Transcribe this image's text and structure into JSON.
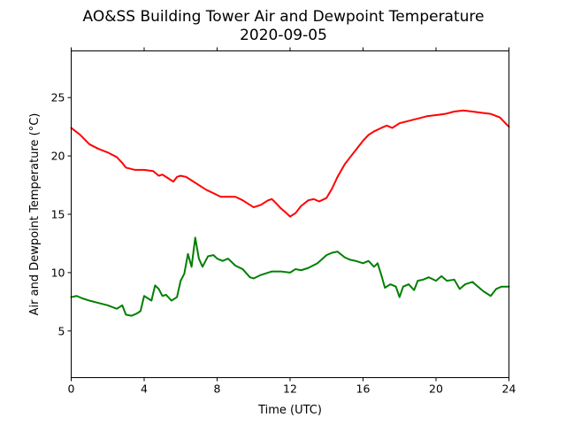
{
  "chart_data": {
    "type": "line",
    "title": "AO&SS Building Tower Air and Dewpoint Temperature",
    "subtitle": "2020-09-05",
    "xlabel": "Time (UTC)",
    "ylabel": "Air and Dewpoint Temperature (°C)",
    "xlim": [
      0,
      24
    ],
    "ylim": [
      1,
      29
    ],
    "x_ticks": [
      0,
      4,
      8,
      12,
      16,
      20,
      24
    ],
    "y_ticks": [
      5,
      10,
      15,
      20,
      25
    ],
    "grid": false,
    "series": [
      {
        "color": "#ff0000",
        "x": [
          0,
          0.5,
          1,
          1.5,
          2,
          2.5,
          2.8,
          3,
          3.5,
          4,
          4.5,
          4.8,
          5,
          5.3,
          5.6,
          5.8,
          6,
          6.3,
          6.6,
          7,
          7.4,
          7.8,
          8.2,
          8.6,
          9,
          9.4,
          9.8,
          10,
          10.4,
          10.8,
          11,
          11.2,
          11.5,
          11.8,
          12,
          12.3,
          12.6,
          13,
          13.3,
          13.6,
          14,
          14.3,
          14.6,
          15,
          15.3,
          15.6,
          16,
          16.3,
          16.6,
          17,
          17.3,
          17.6,
          18,
          18.5,
          19,
          19.5,
          20,
          20.5,
          21,
          21.5,
          22,
          22.5,
          23,
          23.5,
          24
        ],
        "values": [
          22.4,
          21.8,
          21.0,
          20.6,
          20.3,
          19.9,
          19.4,
          19.0,
          18.8,
          18.8,
          18.7,
          18.3,
          18.4,
          18.1,
          17.8,
          18.2,
          18.3,
          18.2,
          17.9,
          17.5,
          17.1,
          16.8,
          16.5,
          16.5,
          16.5,
          16.2,
          15.8,
          15.6,
          15.8,
          16.2,
          16.3,
          16.0,
          15.5,
          15.1,
          14.8,
          15.1,
          15.7,
          16.2,
          16.3,
          16.1,
          16.4,
          17.2,
          18.2,
          19.3,
          19.9,
          20.5,
          21.3,
          21.8,
          22.1,
          22.4,
          22.6,
          22.4,
          22.8,
          23.0,
          23.2,
          23.4,
          23.5,
          23.6,
          23.8,
          23.9,
          23.8,
          23.7,
          23.6,
          23.3,
          22.5
        ]
      },
      {
        "color": "#008000",
        "x": [
          0,
          0.3,
          0.6,
          1,
          1.5,
          2,
          2.5,
          2.8,
          3,
          3.3,
          3.6,
          3.8,
          4,
          4.2,
          4.4,
          4.6,
          4.8,
          5,
          5.2,
          5.5,
          5.8,
          6,
          6.2,
          6.4,
          6.6,
          6.8,
          7,
          7.2,
          7.5,
          7.8,
          8,
          8.3,
          8.6,
          9,
          9.4,
          9.8,
          10,
          10.4,
          10.8,
          11,
          11.5,
          12,
          12.3,
          12.6,
          13,
          13.5,
          14,
          14.3,
          14.6,
          15,
          15.3,
          15.6,
          16,
          16.3,
          16.6,
          16.8,
          17,
          17.2,
          17.5,
          17.8,
          18,
          18.2,
          18.5,
          18.8,
          19,
          19.3,
          19.6,
          20,
          20.3,
          20.6,
          21,
          21.3,
          21.6,
          22,
          22.3,
          22.6,
          23,
          23.3,
          23.6,
          24
        ],
        "values": [
          7.9,
          8.0,
          7.8,
          7.6,
          7.4,
          7.2,
          6.9,
          7.2,
          6.4,
          6.3,
          6.5,
          6.7,
          8.0,
          7.8,
          7.6,
          8.9,
          8.6,
          8.0,
          8.1,
          7.6,
          7.9,
          9.3,
          9.9,
          11.6,
          10.5,
          13.0,
          11.2,
          10.5,
          11.4,
          11.5,
          11.2,
          11.0,
          11.2,
          10.6,
          10.3,
          9.6,
          9.5,
          9.8,
          10.0,
          10.1,
          10.1,
          10.0,
          10.3,
          10.2,
          10.4,
          10.8,
          11.5,
          11.7,
          11.8,
          11.3,
          11.1,
          11.0,
          10.8,
          11.0,
          10.5,
          10.8,
          9.8,
          8.7,
          9.0,
          8.8,
          7.9,
          8.8,
          9.0,
          8.5,
          9.3,
          9.4,
          9.6,
          9.3,
          9.7,
          9.3,
          9.4,
          8.6,
          9.0,
          9.2,
          8.8,
          8.4,
          8.0,
          8.6,
          8.8,
          8.8
        ]
      }
    ]
  }
}
